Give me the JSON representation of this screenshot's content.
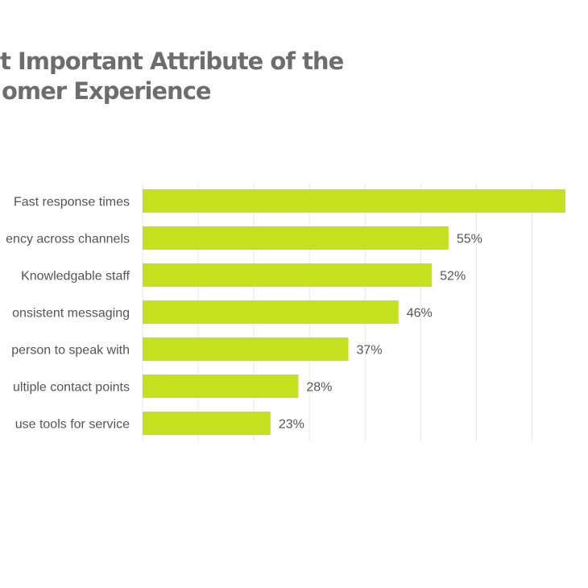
{
  "chart_data": {
    "type": "bar",
    "orientation": "horizontal",
    "title_line1": "t Important Attribute of the",
    "title_line2": "omer Experience",
    "categories": [
      "Fast response times",
      "ency across channels",
      "Knowledgable staff",
      "onsistent messaging",
      "person to speak with",
      "ultiple contact points",
      " use tools for service"
    ],
    "values": [
      76,
      55,
      52,
      46,
      37,
      28,
      23
    ],
    "value_labels": [
      "",
      "55%",
      "52%",
      "46%",
      "37%",
      "28%",
      "23%"
    ],
    "xlim": [
      0,
      75
    ],
    "grid": true,
    "bar_color": "#c5e01e",
    "grid_color": "#e6e6e6",
    "text_color": "#555555",
    "title_color": "#6d6d6d"
  }
}
